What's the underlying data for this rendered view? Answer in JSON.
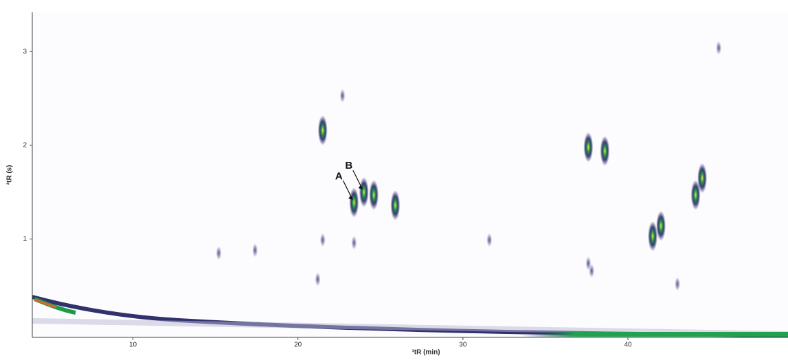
{
  "chart_data": {
    "type": "scatter",
    "x_label": "¹tR (min)",
    "y_label": "²tR (s)",
    "xlim": [
      3.9,
      49.7
    ],
    "xticks": [
      10,
      20,
      30,
      40
    ],
    "ylim": [
      -0.05,
      3.42
    ],
    "yticks": [
      1,
      2,
      3
    ],
    "series": [
      {
        "color": "#1b1b5c",
        "x": [
          21.5,
          23.4,
          24.0,
          24.6,
          37.6,
          38.6,
          41.5,
          42.0,
          44.1,
          44.5,
          45.5,
          21.2,
          37.6,
          37.8,
          43.0,
          15.2,
          17.4,
          23.4,
          22.7,
          25.9,
          31.6,
          21.5
        ],
        "values": [
          2.16,
          1.39,
          1.5,
          1.47,
          1.98,
          1.94,
          1.03,
          1.14,
          1.47,
          1.65,
          3.04,
          0.57,
          0.74,
          0.66,
          0.52,
          0.85,
          0.88,
          0.96,
          2.53,
          1.36,
          0.99,
          0.99
        ]
      }
    ],
    "annotations": [
      {
        "text": "A",
        "x": 23.4,
        "y": 1.39
      },
      {
        "text": "B",
        "x": 24.0,
        "y": 1.5
      }
    ]
  }
}
